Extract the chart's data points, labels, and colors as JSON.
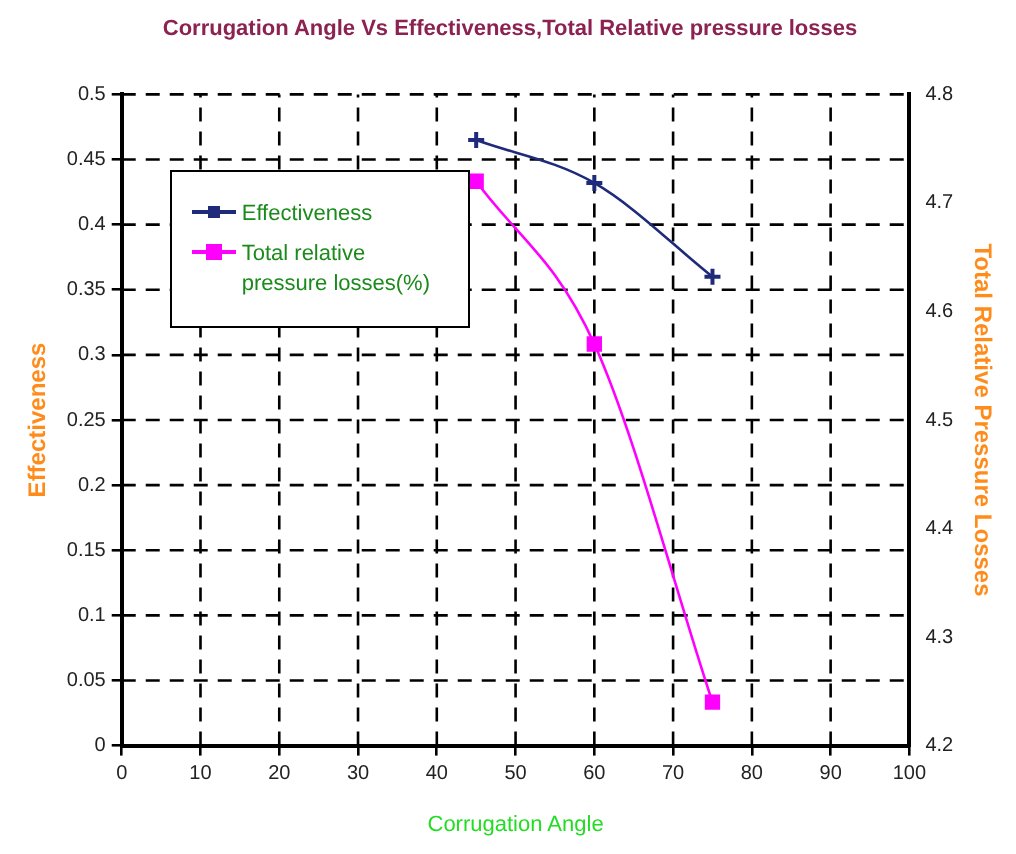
{
  "chart_data": {
    "type": "line",
    "title": "Corrugation Angle Vs Effectiveness,Total Relative pressure losses",
    "xlabel": "Corrugation Angle",
    "ylabel": "Effectiveness",
    "y2label": "Total Relative Pressure Losses",
    "x": [
      45,
      60,
      75
    ],
    "series": [
      {
        "name": "Effectiveness",
        "color": "#1f2a7a",
        "values": [
          0.465,
          0.432,
          0.36
        ],
        "marker": "cross"
      },
      {
        "name": "Total relative pressure losses(%)",
        "color": "#ff00ff",
        "values": [
          4.72,
          4.57,
          4.24
        ],
        "axis": "y2",
        "marker": "square"
      }
    ],
    "xlim": [
      0,
      100
    ],
    "xticks": [
      0,
      10,
      20,
      30,
      40,
      50,
      60,
      70,
      80,
      90,
      100
    ],
    "ylim": [
      0,
      0.5
    ],
    "yticks": [
      0,
      0.05,
      0.1,
      0.15,
      0.2,
      0.25,
      0.3,
      0.35,
      0.4,
      0.45,
      0.5
    ],
    "y2lim": [
      4.2,
      4.8
    ],
    "y2ticks": [
      4.2,
      4.3,
      4.4,
      4.5,
      4.6,
      4.7,
      4.8
    ],
    "grid": true,
    "line_style": "solid",
    "legend": "top left"
  }
}
